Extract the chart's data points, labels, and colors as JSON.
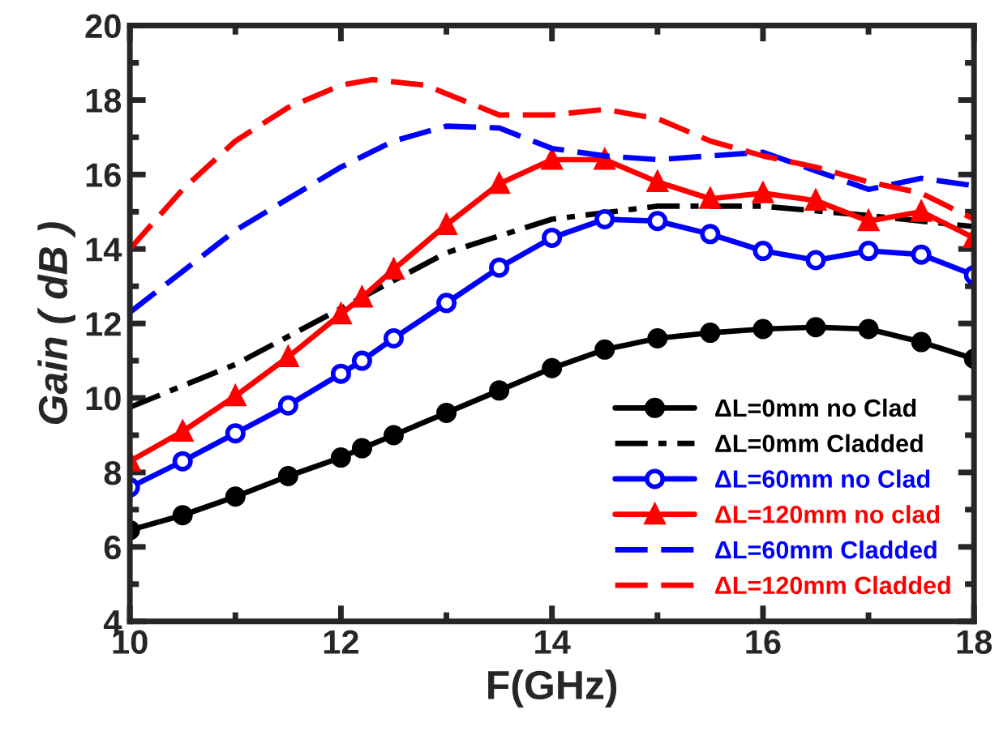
{
  "chart_data": {
    "type": "line",
    "xlabel": "F(GHz)",
    "ylabel": "Gain ( dB )",
    "xlim": [
      10,
      18
    ],
    "xticks": [
      10,
      12,
      14,
      16,
      18
    ],
    "ylim": [
      4,
      20
    ],
    "yticks": [
      4,
      6,
      8,
      10,
      12,
      14,
      16,
      18,
      20
    ],
    "grid": false,
    "legend": "bottom right",
    "series": [
      {
        "name": "ΔL=0mm no Clad",
        "color": "#000000",
        "marker": "circle",
        "line_style": "solid",
        "x": [
          10,
          10.5,
          11,
          11.5,
          12,
          12.2,
          12.5,
          13,
          13.5,
          14,
          14.5,
          15,
          15.5,
          16,
          16.5,
          17,
          17.5,
          18
        ],
        "values": [
          6.45,
          6.85,
          7.35,
          7.9,
          8.4,
          8.65,
          9.0,
          9.6,
          10.2,
          10.8,
          11.3,
          11.6,
          11.75,
          11.85,
          11.9,
          11.85,
          11.5,
          11.05
        ]
      },
      {
        "name": "ΔL=0mm Cladded",
        "color": "#000000",
        "marker": "none",
        "line_style": "dashdot",
        "x": [
          10,
          11,
          12,
          13,
          14,
          15,
          16,
          17,
          18
        ],
        "values": [
          9.75,
          10.9,
          12.4,
          13.9,
          14.8,
          15.15,
          15.15,
          14.9,
          14.6
        ]
      },
      {
        "name": "ΔL=60mm no Clad",
        "color": "#0000ff",
        "marker": "open circle",
        "line_style": "solid",
        "x": [
          10,
          10.5,
          11,
          11.5,
          12,
          12.2,
          12.5,
          13,
          13.5,
          14,
          14.5,
          15,
          15.5,
          16,
          16.5,
          17,
          17.5,
          18
        ],
        "values": [
          7.6,
          8.3,
          9.05,
          9.8,
          10.65,
          11.0,
          11.6,
          12.55,
          13.5,
          14.3,
          14.8,
          14.75,
          14.4,
          13.95,
          13.7,
          13.95,
          13.85,
          13.3
        ]
      },
      {
        "name": "ΔL=120mm no clad",
        "color": "#ff0000",
        "marker": "triangle",
        "line_style": "solid",
        "x": [
          10,
          10.5,
          11,
          11.5,
          12,
          12.2,
          12.5,
          13,
          13.5,
          14,
          14.5,
          15,
          15.5,
          16,
          16.5,
          17,
          17.5,
          18
        ],
        "values": [
          8.3,
          9.1,
          10.05,
          11.1,
          12.25,
          12.7,
          13.45,
          14.65,
          15.75,
          16.4,
          16.4,
          15.8,
          15.35,
          15.5,
          15.3,
          14.75,
          15.0,
          14.3
        ]
      },
      {
        "name": "ΔL=60mm Cladded",
        "color": "#0000ff",
        "marker": "none",
        "line_style": "dashed",
        "x": [
          10,
          11,
          12,
          12.5,
          13,
          13.5,
          14,
          14.5,
          15,
          15.5,
          16,
          16.5,
          17,
          17.5,
          18
        ],
        "values": [
          12.3,
          14.5,
          16.2,
          16.9,
          17.3,
          17.25,
          16.7,
          16.5,
          16.4,
          16.5,
          16.6,
          16.1,
          15.6,
          15.9,
          15.7
        ]
      },
      {
        "name": "ΔL=120mm Cladded",
        "color": "#ff0000",
        "marker": "none",
        "line_style": "dashed",
        "x": [
          10,
          10.5,
          11,
          11.5,
          12,
          12.3,
          12.8,
          13.5,
          14,
          14.5,
          15,
          15.5,
          16,
          16.5,
          17,
          17.5,
          18
        ],
        "values": [
          14.0,
          15.6,
          16.9,
          17.8,
          18.4,
          18.55,
          18.4,
          17.6,
          17.6,
          17.75,
          17.5,
          16.9,
          16.5,
          16.2,
          15.8,
          15.5,
          14.8
        ]
      }
    ]
  }
}
